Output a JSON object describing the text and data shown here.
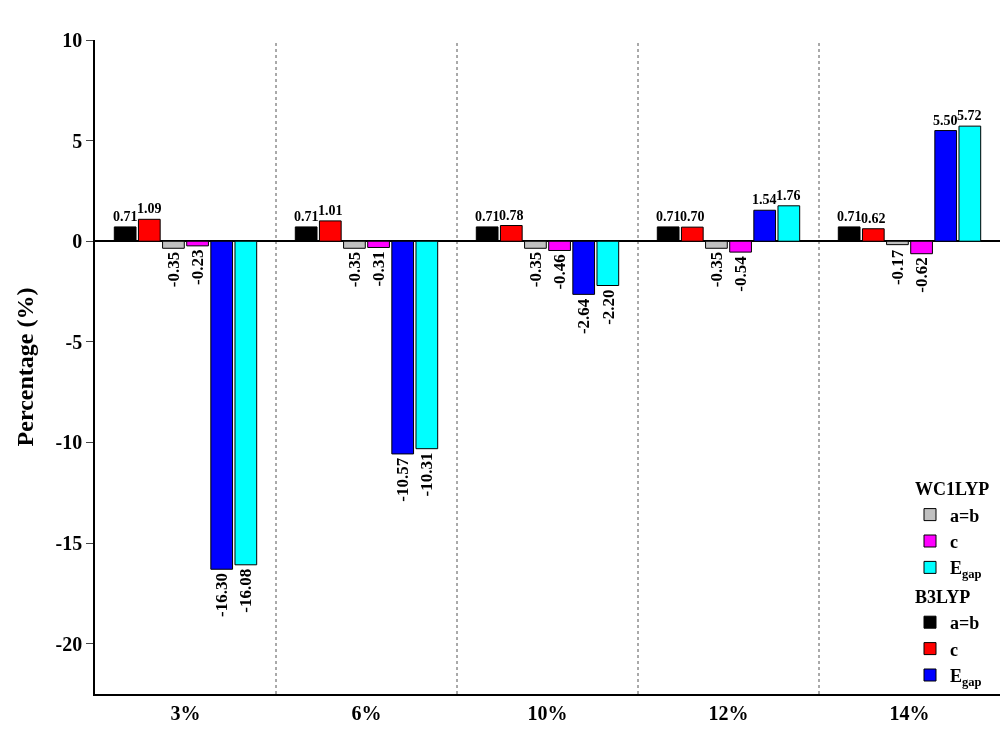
{
  "chart_data": {
    "type": "bar",
    "ylabel": "Percentage (%)",
    "categories": [
      "3%",
      "6%",
      "10%",
      "12%",
      "14%"
    ],
    "legend_title": [
      "B3LYP",
      "WC1LYP"
    ],
    "series": [
      {
        "name": "a=b",
        "color": "#000000",
        "values": [
          0.71,
          0.71,
          0.71,
          0.71,
          0.71
        ],
        "value_labels": [
          "0.71",
          "0.71",
          "0.71",
          "0.71",
          "0.71"
        ]
      },
      {
        "name": "c",
        "color": "#ff0000",
        "values": [
          1.09,
          1.01,
          0.78,
          0.7,
          0.62
        ],
        "value_labels": [
          "1.09",
          "1.01",
          "0.78",
          "0.70",
          "0.62"
        ]
      },
      {
        "name": "a=b",
        "color": "#c0c0c0",
        "values": [
          -0.35,
          -0.35,
          -0.35,
          -0.35,
          -0.17
        ],
        "value_labels": [
          "-0.35",
          "-0.35",
          "-0.35",
          "-0.35",
          "-0.17"
        ]
      },
      {
        "name": "c",
        "color": "#ff00ff",
        "values": [
          -0.23,
          -0.31,
          -0.46,
          -0.54,
          -0.62
        ],
        "value_labels": [
          "-0.23",
          "-0.31",
          "-0.46",
          "-0.54",
          "-0.62"
        ]
      },
      {
        "name": "E$_{gap}$",
        "color": "#0000ff",
        "values": [
          -16.3,
          -10.57,
          -2.64,
          1.54,
          5.5
        ],
        "value_labels": [
          "-16.30",
          "-10.57",
          "-2.64",
          "1.54",
          "5.50"
        ]
      },
      {
        "name": "E$_{gap}$",
        "color": "#00ffff",
        "values": [
          -16.08,
          -10.31,
          -2.2,
          1.76,
          5.72
        ],
        "value_labels": [
          "-16.08",
          "-10.31",
          "-2.20",
          "1.76",
          "5.72"
        ]
      }
    ],
    "ylim": [
      -22.5,
      10
    ],
    "yticks": [
      -20,
      -15,
      -10,
      -5,
      0,
      5,
      10
    ],
    "grid": "x",
    "legend": "bottom right"
  }
}
